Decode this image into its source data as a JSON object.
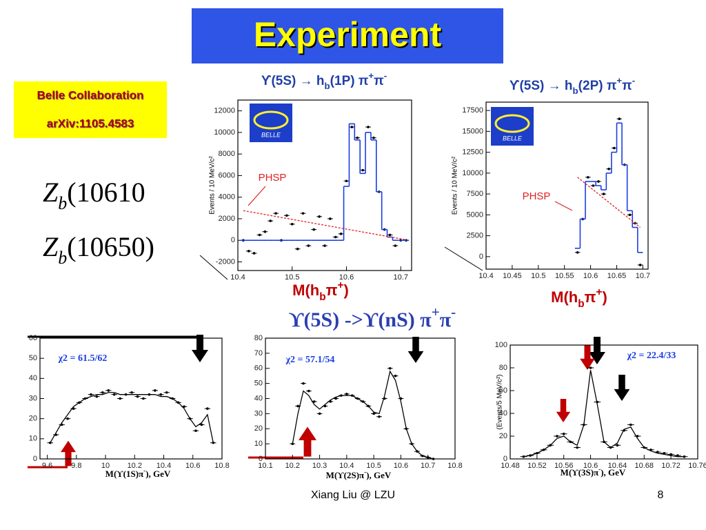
{
  "title": "Experiment",
  "info_box": {
    "line1": "Belle Collaboration",
    "line2": "arXiv:1105.4583"
  },
  "states": [
    {
      "symbol": "Z",
      "subscript": "b",
      "rest": "(10610"
    },
    {
      "symbol": "Z",
      "subscript": "b",
      "rest": "(10650)"
    }
  ],
  "heading_parts": [
    {
      "text": "ϒ(5S) ->ϒ(nS) π"
    },
    {
      "text": "+",
      "sup": true
    },
    {
      "text": "π"
    },
    {
      "text": "-",
      "sup": true
    }
  ],
  "footer": {
    "author": "Xiang Liu @ LZU",
    "page": "8"
  },
  "chart_data": [
    {
      "type": "histogram-fit",
      "title_parts": [
        {
          "text": "ϒ(5S) → h"
        },
        {
          "text": "b",
          "sub": true
        },
        {
          "text": "(1P) π"
        },
        {
          "text": "+",
          "sup": true
        },
        {
          "text": "π"
        },
        {
          "text": "-",
          "sup": true
        }
      ],
      "xlabel_parts": [
        {
          "text": "M(h"
        },
        {
          "text": "b",
          "sub": true
        },
        {
          "text": "π"
        },
        {
          "text": "+",
          "sup": true
        },
        {
          "text": ")"
        }
      ],
      "ylabel": "Events / 10 MeV/c²",
      "annotation": "PHSP",
      "logo_text": "BELLE",
      "xlim": [
        10.4,
        10.72
      ],
      "xticks": [
        10.4,
        10.5,
        10.6,
        10.7
      ],
      "ylim": [
        -2800,
        13000
      ],
      "yticks": [
        -2000,
        0,
        2000,
        4000,
        6000,
        8000,
        10000,
        12000
      ],
      "x": [
        10.41,
        10.42,
        10.43,
        10.44,
        10.45,
        10.46,
        10.47,
        10.48,
        10.49,
        10.5,
        10.51,
        10.52,
        10.53,
        10.54,
        10.55,
        10.56,
        10.57,
        10.58,
        10.59,
        10.6,
        10.61,
        10.62,
        10.63,
        10.64,
        10.65,
        10.66,
        10.67,
        10.68,
        10.69,
        10.7,
        10.71
      ],
      "series": [
        {
          "name": "data",
          "style": "points",
          "color": "#000000",
          "values": [
            0,
            -1000,
            -1200,
            500,
            800,
            1800,
            2500,
            0,
            2300,
            1500,
            -800,
            2500,
            -500,
            1000,
            2200,
            -500,
            2000,
            300,
            600,
            5500,
            10500,
            9500,
            6500,
            10500,
            9500,
            4500,
            1000,
            500,
            -500,
            0,
            0
          ]
        },
        {
          "name": "fit",
          "style": "step",
          "color": "#1a3de0",
          "values": [
            0,
            0,
            0,
            0,
            0,
            0,
            0,
            0,
            0,
            0,
            0,
            0,
            0,
            0,
            0,
            0,
            0,
            0,
            0,
            5000,
            10800,
            9300,
            6200,
            10000,
            9300,
            4500,
            1000,
            300,
            0,
            0,
            0
          ]
        },
        {
          "name": "PHSP",
          "style": "dashed",
          "color": "#e02020",
          "values": [
            2750,
            2660,
            2570,
            2480,
            2390,
            2300,
            2210,
            2120,
            2030,
            1940,
            1850,
            1760,
            1670,
            1580,
            1490,
            1400,
            1310,
            1220,
            1130,
            1040,
            950,
            860,
            770,
            680,
            590,
            500,
            410,
            320,
            230,
            140,
            50
          ]
        }
      ]
    },
    {
      "type": "histogram-fit",
      "title_parts": [
        {
          "text": "ϒ(5S) → h"
        },
        {
          "text": "b",
          "sub": true
        },
        {
          "text": "(2P) π"
        },
        {
          "text": "+",
          "sup": true
        },
        {
          "text": "π"
        },
        {
          "text": "-",
          "sup": true
        }
      ],
      "xlabel_parts": [
        {
          "text": "M(h"
        },
        {
          "text": "b",
          "sub": true
        },
        {
          "text": "π"
        },
        {
          "text": "+",
          "sup": true
        },
        {
          "text": ")"
        }
      ],
      "ylabel": "Events / 10 MeV/c²",
      "annotation": "PHSP",
      "logo_text": "BELLE",
      "xlim": [
        10.4,
        10.71
      ],
      "xticks": [
        10.4,
        10.45,
        10.5,
        10.55,
        10.6,
        10.65,
        10.7
      ],
      "ylim": [
        -1500,
        18500
      ],
      "yticks": [
        0,
        2500,
        5000,
        7500,
        10000,
        12500,
        15000,
        17500
      ],
      "x": [
        10.575,
        10.585,
        10.595,
        10.605,
        10.615,
        10.625,
        10.635,
        10.645,
        10.655,
        10.665,
        10.675,
        10.685,
        10.695
      ],
      "series": [
        {
          "name": "data",
          "style": "points",
          "color": "#000000",
          "values": [
            500,
            4500,
            9500,
            8500,
            9000,
            7500,
            10500,
            13000,
            16500,
            11000,
            5000,
            4000,
            -1000
          ]
        },
        {
          "name": "fit",
          "style": "step",
          "color": "#1a3de0",
          "values": [
            1000,
            4500,
            9000,
            9000,
            8500,
            8000,
            10000,
            12500,
            16000,
            11000,
            5500,
            3500,
            500
          ]
        },
        {
          "name": "PHSP",
          "style": "dashed",
          "color": "#e02020",
          "values": [
            9500,
            9000,
            8500,
            8000,
            7500,
            7000,
            6500,
            6000,
            5500,
            5000,
            4500,
            4000,
            3500
          ]
        }
      ]
    },
    {
      "type": "histogram-fit",
      "annotation": "χ2 = 61.5/62",
      "xlabel_parts": [
        {
          "text": "M(ϒ(1S)π"
        },
        {
          "text": "-",
          "sup": true
        },
        {
          "text": "), GeV"
        }
      ],
      "xlim": [
        9.55,
        10.8
      ],
      "xticks": [
        9.6,
        9.8,
        10,
        10.2,
        10.4,
        10.6,
        10.8
      ],
      "ylim": [
        0,
        60
      ],
      "yticks": [
        0,
        10,
        20,
        30,
        40,
        50,
        60
      ],
      "x": [
        9.62,
        9.66,
        9.7,
        9.74,
        9.78,
        9.82,
        9.86,
        9.9,
        9.94,
        9.98,
        10.02,
        10.06,
        10.1,
        10.14,
        10.18,
        10.22,
        10.26,
        10.3,
        10.34,
        10.38,
        10.42,
        10.46,
        10.5,
        10.54,
        10.58,
        10.62,
        10.66,
        10.7,
        10.74
      ],
      "series": [
        {
          "name": "data",
          "style": "points",
          "color": "#000000",
          "values": [
            8,
            12,
            17,
            20,
            25,
            28,
            30,
            32,
            31,
            33,
            34,
            32,
            30,
            32,
            33,
            31,
            30,
            32,
            34,
            32,
            33,
            30,
            28,
            26,
            20,
            14,
            17,
            25,
            8
          ]
        },
        {
          "name": "fit",
          "style": "curve",
          "color": "#000000",
          "values": [
            8,
            13,
            18,
            22,
            26,
            28,
            30,
            31,
            32,
            32,
            33,
            33,
            32,
            32,
            32,
            32,
            32,
            32,
            32,
            31,
            31,
            30,
            28,
            25,
            20,
            16,
            18,
            22,
            8
          ]
        }
      ]
    },
    {
      "type": "histogram-fit",
      "annotation": "χ2 = 57.1/54",
      "xlabel_parts": [
        {
          "text": "M(ϒ(2S)π"
        },
        {
          "text": "-",
          "sup": true
        },
        {
          "text": "), GeV"
        }
      ],
      "xlim": [
        10.1,
        10.8
      ],
      "xticks": [
        10.1,
        10.2,
        10.3,
        10.4,
        10.5,
        10.6,
        10.7,
        10.8
      ],
      "ylim": [
        0,
        80
      ],
      "yticks": [
        0,
        10,
        20,
        30,
        40,
        50,
        60,
        70,
        80
      ],
      "x": [
        10.2,
        10.22,
        10.24,
        10.26,
        10.28,
        10.3,
        10.32,
        10.34,
        10.36,
        10.38,
        10.4,
        10.42,
        10.44,
        10.46,
        10.48,
        10.5,
        10.52,
        10.54,
        10.56,
        10.58,
        10.6,
        10.62,
        10.64,
        10.66,
        10.68,
        10.7,
        10.72
      ],
      "series": [
        {
          "name": "data",
          "style": "points",
          "color": "#000000",
          "values": [
            10,
            35,
            50,
            45,
            38,
            30,
            35,
            38,
            40,
            42,
            43,
            42,
            40,
            38,
            35,
            30,
            28,
            40,
            60,
            55,
            40,
            20,
            10,
            5,
            2,
            1,
            0
          ]
        },
        {
          "name": "fit",
          "style": "curve",
          "color": "#000000",
          "values": [
            10,
            30,
            45,
            42,
            36,
            33,
            36,
            39,
            41,
            42,
            42,
            42,
            40,
            38,
            35,
            31,
            30,
            42,
            58,
            52,
            38,
            20,
            10,
            5,
            2,
            1,
            0
          ]
        }
      ]
    },
    {
      "type": "histogram-fit",
      "annotation": "χ2 = 22.4/33",
      "ylabel": "(Events/5 MeV/c²)",
      "xlabel_parts": [
        {
          "text": "M(ϒ(3S)π"
        },
        {
          "text": "-",
          "sup": true
        },
        {
          "text": "), GeV"
        }
      ],
      "xlim": [
        10.48,
        10.76
      ],
      "xticks": [
        10.48,
        10.52,
        10.56,
        10.6,
        10.64,
        10.68,
        10.72,
        10.76
      ],
      "ylim": [
        0,
        100
      ],
      "yticks": [
        0,
        20,
        40,
        60,
        80,
        100
      ],
      "x": [
        10.5,
        10.51,
        10.52,
        10.53,
        10.54,
        10.55,
        10.56,
        10.57,
        10.58,
        10.59,
        10.6,
        10.61,
        10.62,
        10.63,
        10.64,
        10.65,
        10.66,
        10.67,
        10.68,
        10.69,
        10.7,
        10.71,
        10.72,
        10.73,
        10.74
      ],
      "series": [
        {
          "name": "data",
          "style": "points",
          "color": "#000000",
          "values": [
            2,
            3,
            5,
            8,
            12,
            20,
            22,
            15,
            10,
            30,
            80,
            50,
            15,
            10,
            12,
            25,
            30,
            20,
            10,
            8,
            6,
            5,
            4,
            3,
            2
          ]
        },
        {
          "name": "fit",
          "style": "curve",
          "color": "#000000",
          "values": [
            2,
            3,
            5,
            8,
            12,
            18,
            20,
            15,
            12,
            30,
            78,
            48,
            15,
            10,
            14,
            26,
            28,
            18,
            10,
            7,
            5,
            4,
            3,
            2,
            2
          ]
        }
      ]
    }
  ]
}
